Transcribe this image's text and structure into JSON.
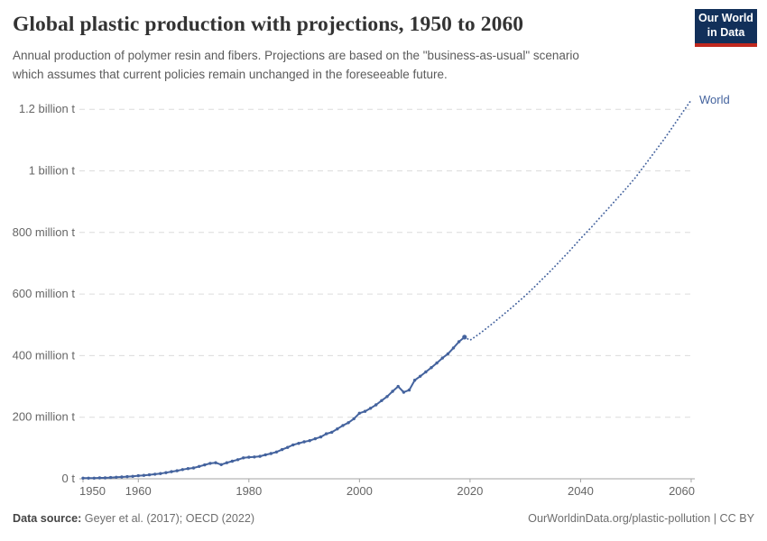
{
  "header": {
    "title": "Global plastic production with projections, 1950 to 2060",
    "subtitle_lines": [
      "Annual production of polymer resin and fibers. Projections are based on the \"business-as-usual\" scenario",
      "which assumes that current policies remain unchanged in the foreseeable future."
    ],
    "logo": {
      "line1": "Our World",
      "line2": "in Data",
      "bg": "#12305a",
      "stripe": "#c0281e"
    }
  },
  "footer": {
    "datasource_label": "Data source:",
    "datasource_value": " Geyer et al. (2017); OECD (2022)",
    "credit": "OurWorldinData.org/plastic-pollution | CC BY"
  },
  "chart_data": {
    "type": "line",
    "title": "Global plastic production with projections, 1950 to 2060",
    "unit": "tonnes",
    "entity_label": "World",
    "line_color": "#44639e",
    "grid_color": "#dcdcdc",
    "axis_color": "#a3a3a3",
    "tick_text_color": "#666666",
    "grid": "dashed-horizontal",
    "legend_position": "line-end-label",
    "xlim": [
      1949.3,
      2061
    ],
    "ylim": [
      0,
      1260
    ],
    "x_ticks": [
      1950,
      1960,
      1980,
      2000,
      2020,
      2040,
      2060
    ],
    "y_ticks": [
      {
        "value": 0,
        "label": "0 t"
      },
      {
        "value": 200,
        "label": "200 million t"
      },
      {
        "value": 400,
        "label": "400 million t"
      },
      {
        "value": 600,
        "label": "600 million t"
      },
      {
        "value": 800,
        "label": "800 million t"
      },
      {
        "value": 1000,
        "label": "1 billion t"
      },
      {
        "value": 1200,
        "label": "1.2 billion t"
      }
    ],
    "series": [
      {
        "name": "World (historical)",
        "style": "solid",
        "markers": true,
        "x": [
          1950,
          1951,
          1952,
          1953,
          1954,
          1955,
          1956,
          1957,
          1958,
          1959,
          1960,
          1961,
          1962,
          1963,
          1964,
          1965,
          1966,
          1967,
          1968,
          1969,
          1970,
          1971,
          1972,
          1973,
          1974,
          1975,
          1976,
          1977,
          1978,
          1979,
          1980,
          1981,
          1982,
          1983,
          1984,
          1985,
          1986,
          1987,
          1988,
          1989,
          1990,
          1991,
          1992,
          1993,
          1994,
          1995,
          1996,
          1997,
          1998,
          1999,
          2000,
          2001,
          2002,
          2003,
          2004,
          2005,
          2006,
          2007,
          2008,
          2009,
          2010,
          2011,
          2012,
          2013,
          2014,
          2015,
          2016,
          2017,
          2018,
          2019
        ],
        "values": [
          2,
          2,
          2,
          3,
          3,
          4,
          5,
          6,
          7,
          8,
          10,
          11,
          13,
          15,
          17,
          20,
          23,
          26,
          30,
          33,
          35,
          40,
          45,
          50,
          52,
          46,
          52,
          57,
          62,
          68,
          70,
          71,
          73,
          78,
          82,
          87,
          95,
          102,
          110,
          115,
          120,
          124,
          130,
          136,
          146,
          151,
          162,
          173,
          182,
          195,
          213,
          219,
          229,
          240,
          254,
          267,
          284,
          300,
          281,
          288,
          320,
          333,
          347,
          361,
          376,
          392,
          406,
          425,
          445,
          460
        ]
      },
      {
        "name": "World (projection, business-as-usual)",
        "style": "dotted",
        "markers": false,
        "x": [
          2019,
          2020,
          2021,
          2022,
          2023,
          2024,
          2025,
          2026,
          2027,
          2028,
          2029,
          2030,
          2031,
          2032,
          2033,
          2034,
          2035,
          2036,
          2037,
          2038,
          2039,
          2040,
          2041,
          2042,
          2043,
          2044,
          2045,
          2046,
          2047,
          2048,
          2049,
          2050,
          2051,
          2052,
          2053,
          2054,
          2055,
          2056,
          2057,
          2058,
          2059,
          2060
        ],
        "values": [
          460,
          450,
          462,
          475,
          489,
          503,
          518,
          533,
          548,
          563,
          579,
          595,
          612,
          629,
          647,
          665,
          683,
          702,
          721,
          740,
          760,
          780,
          799,
          818,
          838,
          858,
          878,
          898,
          918,
          938,
          959,
          980,
          1004,
          1028,
          1052,
          1076,
          1100,
          1126,
          1152,
          1178,
          1204,
          1230
        ]
      }
    ]
  }
}
